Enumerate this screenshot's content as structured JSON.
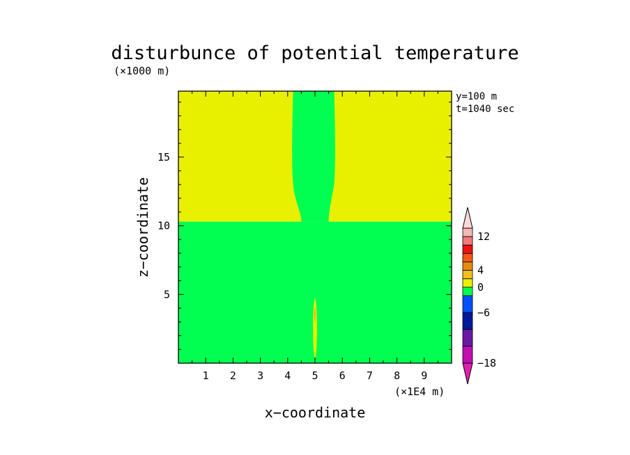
{
  "chart_data": {
    "type": "heatmap",
    "title": "disturbunce of potential temperature",
    "xlabel": "x−coordinate",
    "ylabel": "z−coordinate",
    "x_unit": "(×1E4 m)",
    "y_unit": "(×1000 m)",
    "xlim": [
      0,
      10
    ],
    "ylim": [
      0,
      19.8
    ],
    "x_ticks": [
      1,
      2,
      3,
      4,
      5,
      6,
      7,
      8,
      9
    ],
    "y_ticks": [
      5,
      10,
      15
    ],
    "annotations": [
      "y=100 m",
      "t=1040 sec"
    ],
    "colorbar": {
      "labels": [
        "12",
        "4",
        "0",
        "−6",
        "−18"
      ],
      "label_values": [
        12,
        4,
        0,
        -6,
        -18
      ],
      "levels": [
        {
          "min": 12,
          "max": 14,
          "color": "#f4b8b8"
        },
        {
          "min": 10,
          "max": 12,
          "color": "#f07a7a"
        },
        {
          "min": 8,
          "max": 10,
          "color": "#ee1010"
        },
        {
          "min": 6,
          "max": 8,
          "color": "#f05a14"
        },
        {
          "min": 4,
          "max": 6,
          "color": "#e88a10"
        },
        {
          "min": 2,
          "max": 4,
          "color": "#f0c020"
        },
        {
          "min": 0,
          "max": 2,
          "color": "#e8f000"
        },
        {
          "min": -2,
          "max": 0,
          "color": "#00ff50"
        },
        {
          "min": -6,
          "max": -2,
          "color": "#0050ff"
        },
        {
          "min": -10,
          "max": -6,
          "color": "#001a9a"
        },
        {
          "min": -14,
          "max": -10,
          "color": "#6a1aa0"
        },
        {
          "min": -18,
          "max": -14,
          "color": "#c010b0"
        }
      ],
      "over_color": "#f8dada",
      "under_color": "#e020b0"
    },
    "regions": [
      {
        "name": "lower layer",
        "x": [
          0,
          10
        ],
        "z": [
          0,
          10.3
        ],
        "level": "-2 to 0",
        "color": "#00ff50"
      },
      {
        "name": "upper layer",
        "x": [
          0,
          10
        ],
        "z": [
          10.3,
          19.8
        ],
        "level": "0 to 2",
        "color": "#e8f000"
      },
      {
        "name": "upper plume",
        "x_center": 5.0,
        "x_range_at_top": [
          4.2,
          5.7
        ],
        "x_range_at_z10_4": [
          4.5,
          5.5
        ],
        "z": [
          10.3,
          19.8
        ],
        "level": "-2 to 0",
        "color": "#00ff50"
      },
      {
        "name": "lower plume",
        "x_center": 5.0,
        "x_range": [
          4.9,
          5.1
        ],
        "z": [
          0.3,
          4.7
        ],
        "level": "0 to 2",
        "color": "#e8f000"
      },
      {
        "name": "plume core",
        "x_center": 5.0,
        "z": [
          3.0,
          4.1
        ],
        "level": "2 to 4",
        "color": "#f0c020"
      }
    ]
  }
}
